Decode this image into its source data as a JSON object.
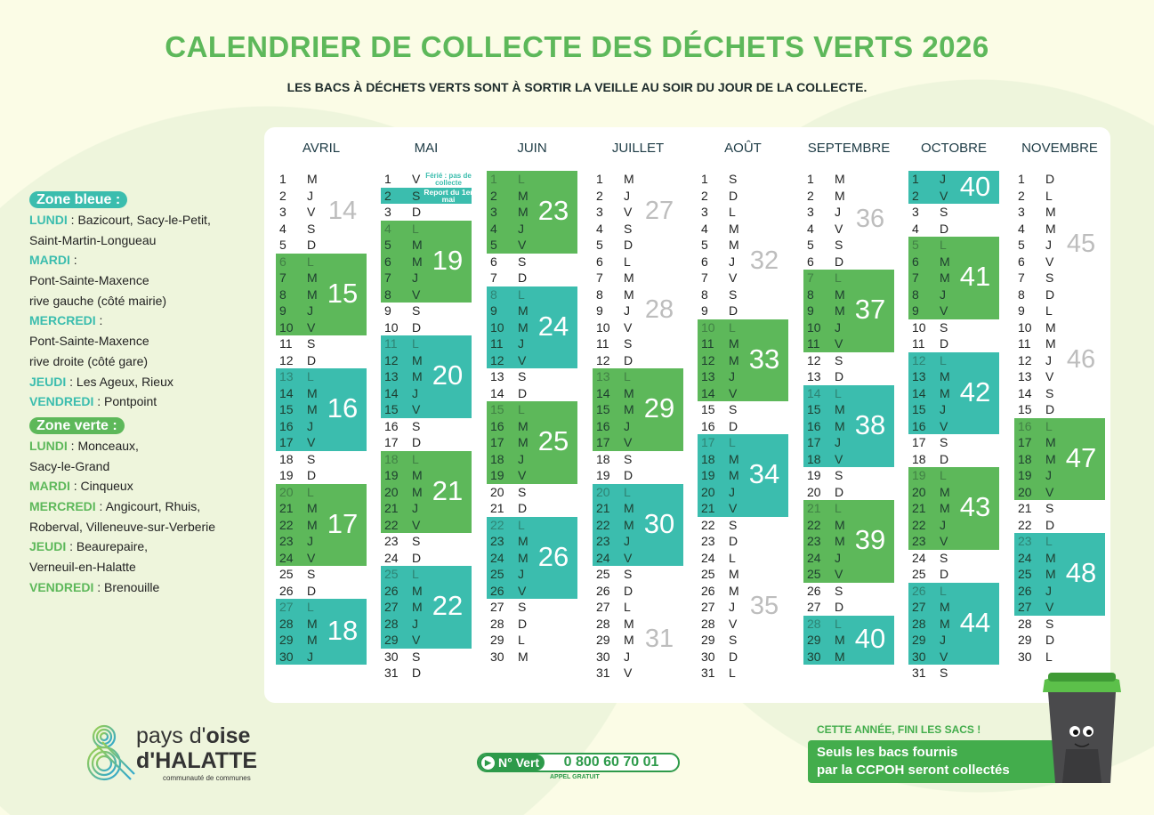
{
  "title": "CALENDRIER DE COLLECTE DES DÉCHETS VERTS 2026",
  "subtitle": "LES BACS À DÉCHETS VERTS SONT À SORTIR LA VEILLE AU SOIR DU JOUR DE LA COLLECTE.",
  "colors": {
    "green": "#5db85a",
    "teal": "#3bbdae",
    "gray_week": "#bdbdbd"
  },
  "weekday_letters": [
    "L",
    "M",
    "M",
    "J",
    "V",
    "S",
    "D"
  ],
  "months": [
    {
      "name": "AVRIL",
      "length": 30,
      "first_weekday": 2,
      "blocks": [
        {
          "from": 6,
          "to": 10,
          "zone": "verte",
          "week": 15
        },
        {
          "from": 13,
          "to": 17,
          "zone": "bleue",
          "week": 16
        },
        {
          "from": 20,
          "to": 24,
          "zone": "verte",
          "week": 17
        },
        {
          "from": 27,
          "to": 30,
          "zone": "bleue",
          "week": 18
        }
      ],
      "gray_weeks": [
        {
          "day": 3,
          "week": 14
        }
      ]
    },
    {
      "name": "MAI",
      "length": 31,
      "first_weekday": 4,
      "blocks": [
        {
          "from": 2,
          "to": 2,
          "zone": "bleue",
          "week": null
        },
        {
          "from": 4,
          "to": 8,
          "zone": "verte",
          "week": 19
        },
        {
          "from": 11,
          "to": 15,
          "zone": "bleue",
          "week": 20
        },
        {
          "from": 18,
          "to": 22,
          "zone": "verte",
          "week": 21
        },
        {
          "from": 25,
          "to": 29,
          "zone": "bleue",
          "week": 22
        }
      ],
      "gray_weeks": [],
      "notes": {
        "holiday": "Férié : pas de collecte",
        "report": "Report du 1er mai"
      }
    },
    {
      "name": "JUIN",
      "length": 30,
      "first_weekday": 0,
      "blocks": [
        {
          "from": 1,
          "to": 5,
          "zone": "verte",
          "week": 23
        },
        {
          "from": 8,
          "to": 12,
          "zone": "bleue",
          "week": 24
        },
        {
          "from": 15,
          "to": 19,
          "zone": "verte",
          "week": 25
        },
        {
          "from": 22,
          "to": 26,
          "zone": "bleue",
          "week": 26
        }
      ],
      "gray_weeks": []
    },
    {
      "name": "JUILLET",
      "length": 31,
      "first_weekday": 2,
      "blocks": [
        {
          "from": 13,
          "to": 17,
          "zone": "verte",
          "week": 29
        },
        {
          "from": 20,
          "to": 24,
          "zone": "bleue",
          "week": 30
        }
      ],
      "gray_weeks": [
        {
          "day": 3,
          "week": 27
        },
        {
          "day": 9,
          "week": 28
        },
        {
          "day": 29,
          "week": 31
        }
      ]
    },
    {
      "name": "AOÛT",
      "length": 31,
      "first_weekday": 5,
      "blocks": [
        {
          "from": 10,
          "to": 14,
          "zone": "verte",
          "week": 33
        },
        {
          "from": 17,
          "to": 21,
          "zone": "bleue",
          "week": 34
        }
      ],
      "gray_weeks": [
        {
          "day": 6,
          "week": 32
        },
        {
          "day": 27,
          "week": 35
        }
      ]
    },
    {
      "name": "SEPTEMBRE",
      "length": 30,
      "first_weekday": 1,
      "blocks": [
        {
          "from": 7,
          "to": 11,
          "zone": "verte",
          "week": 37
        },
        {
          "from": 14,
          "to": 18,
          "zone": "bleue",
          "week": 38
        },
        {
          "from": 21,
          "to": 25,
          "zone": "verte",
          "week": 39
        },
        {
          "from": 28,
          "to": 30,
          "zone": "bleue",
          "week": 40
        }
      ],
      "gray_weeks": [
        {
          "day": 3.5,
          "week": 36
        }
      ]
    },
    {
      "name": "OCTOBRE",
      "length": 31,
      "first_weekday": 3,
      "blocks": [
        {
          "from": 1,
          "to": 2,
          "zone": "bleue",
          "week": 40
        },
        {
          "from": 5,
          "to": 9,
          "zone": "verte",
          "week": 41
        },
        {
          "from": 12,
          "to": 16,
          "zone": "bleue",
          "week": 42
        },
        {
          "from": 19,
          "to": 23,
          "zone": "verte",
          "week": 43
        },
        {
          "from": 26,
          "to": 30,
          "zone": "bleue",
          "week": 44
        }
      ],
      "gray_weeks": []
    },
    {
      "name": "NOVEMBRE",
      "length": 30,
      "first_weekday": 6,
      "blocks": [
        {
          "from": 16,
          "to": 20,
          "zone": "verte",
          "week": 47
        },
        {
          "from": 23,
          "to": 27,
          "zone": "bleue",
          "week": 48
        }
      ],
      "gray_weeks": [
        {
          "day": 5,
          "week": 45
        },
        {
          "day": 12,
          "week": 46
        }
      ]
    }
  ],
  "legend": {
    "bleue": {
      "title": "Zone bleue :",
      "lines": [
        {
          "key": "LUNDI",
          "text": " : Bazicourt, Sacy-le-Petit,"
        },
        {
          "key": "",
          "text": "Saint-Martin-Longueau"
        },
        {
          "key": "MARDI",
          "text": " :"
        },
        {
          "key": "",
          "text": "Pont-Sainte-Maxence"
        },
        {
          "key": "",
          "text": "rive gauche (côté mairie)"
        },
        {
          "key": "MERCREDI",
          "text": " :"
        },
        {
          "key": "",
          "text": "Pont-Sainte-Maxence"
        },
        {
          "key": "",
          "text": "rive droite (côté gare)"
        },
        {
          "key": "JEUDI",
          "text": " : Les Ageux, Rieux"
        },
        {
          "key": "VENDREDI",
          "text": " : Pontpoint"
        }
      ]
    },
    "verte": {
      "title": "Zone verte :",
      "lines": [
        {
          "key": "LUNDI",
          "text": " : Monceaux,"
        },
        {
          "key": "",
          "text": "Sacy-le-Grand"
        },
        {
          "key": "MARDI",
          "text": " : Cinqueux"
        },
        {
          "key": "MERCREDI",
          "text": " : Angicourt, Rhuis,"
        },
        {
          "key": "",
          "text": "Roberval, Villeneuve-sur-Verberie"
        },
        {
          "key": "JEUDI",
          "text": " : Beaurepaire,"
        },
        {
          "key": "",
          "text": "Verneuil-en-Halatte"
        },
        {
          "key": "VENDREDI",
          "text": " : Brenouille"
        }
      ]
    }
  },
  "logo": {
    "line1a": "pays d'",
    "line1b": "oise",
    "line2": "d'HALATTE",
    "line3": "communauté de communes"
  },
  "hotline": {
    "label": "N° Vert",
    "number": "0 800 60 70 01",
    "note": "APPEL GRATUIT"
  },
  "promo": {
    "caption": "CETTE ANNÉE, FINI LES SACS !",
    "line1": "Seuls les bacs fournis",
    "line2": "par la CCPOH seront collectés"
  }
}
